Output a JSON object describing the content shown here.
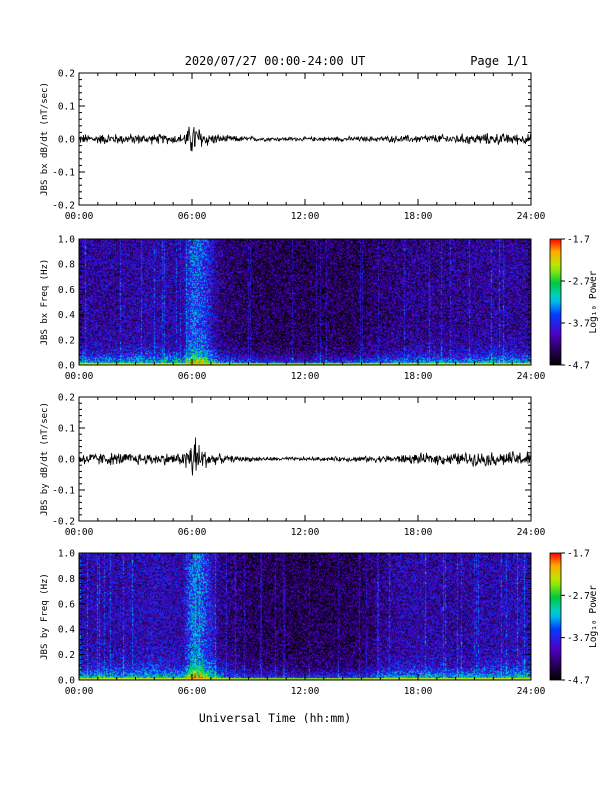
{
  "header": {
    "title": "2020/07/27  00:00-24:00 UT",
    "page": "Page 1/1"
  },
  "xlabel": "Universal Time (hh:mm)",
  "colors": {
    "line": "#000000",
    "background": "#ffffff"
  },
  "colorbar": {
    "label": "Log₁₀ Power",
    "ticks": [
      "-1.7",
      "-2.7",
      "-3.7",
      "-4.7"
    ],
    "range": [
      -4.7,
      -1.7
    ]
  },
  "chart_data": [
    {
      "type": "line",
      "ylabel": "JBS bx dB/dt (nT/sec)",
      "xlim": [
        0,
        24
      ],
      "ylim": [
        -0.2,
        0.2
      ],
      "xticks": [
        "00:00",
        "06:00",
        "12:00",
        "18:00",
        "24:00"
      ],
      "yticks": [
        "0.2",
        "0.1",
        "0.0",
        "-0.1",
        "-0.2"
      ],
      "x": [
        0,
        2,
        4,
        5.5,
        6.1,
        6.4,
        7,
        8,
        10,
        12,
        14,
        16,
        18,
        20,
        22,
        24
      ],
      "amplitude": [
        0.012,
        0.013,
        0.012,
        0.012,
        0.045,
        0.03,
        0.014,
        0.008,
        0.005,
        0.005,
        0.006,
        0.007,
        0.01,
        0.012,
        0.014,
        0.012
      ]
    },
    {
      "type": "heatmap",
      "ylabel": "JBS bx Freq (Hz)",
      "xlim": [
        0,
        24
      ],
      "ylim": [
        0,
        1
      ],
      "xticks": [
        "00:00",
        "06:00",
        "12:00",
        "18:00",
        "24:00"
      ],
      "yticks": [
        "1.0",
        "0.8",
        "0.6",
        "0.4",
        "0.2",
        "0.0"
      ],
      "color_scale": "rainbow",
      "zlim": [
        -4.7,
        -1.7
      ],
      "activity_hours": [
        0,
        2,
        4,
        5.5,
        6.0,
        6.5,
        7.5,
        9,
        12,
        15,
        16.5,
        18,
        20,
        22,
        24
      ],
      "activity_level": [
        0.35,
        0.35,
        0.4,
        0.35,
        0.8,
        0.75,
        0.25,
        0.15,
        0.12,
        0.15,
        0.25,
        0.3,
        0.3,
        0.35,
        0.35
      ]
    },
    {
      "type": "line",
      "ylabel": "JBS by dB/dt (nT/sec)",
      "xlim": [
        0,
        24
      ],
      "ylim": [
        -0.2,
        0.2
      ],
      "xticks": [
        "00:00",
        "06:00",
        "12:00",
        "18:00",
        "24:00"
      ],
      "yticks": [
        "0.2",
        "0.1",
        "0.0",
        "-0.1",
        "-0.2"
      ],
      "x": [
        0,
        2,
        4,
        5.5,
        6.1,
        6.4,
        7,
        8,
        10,
        12,
        14,
        16,
        18,
        20,
        22,
        24
      ],
      "amplitude": [
        0.016,
        0.016,
        0.015,
        0.015,
        0.07,
        0.04,
        0.016,
        0.008,
        0.005,
        0.005,
        0.006,
        0.009,
        0.013,
        0.016,
        0.018,
        0.02
      ]
    },
    {
      "type": "heatmap",
      "ylabel": "JBS by Freq (Hz)",
      "xlim": [
        0,
        24
      ],
      "ylim": [
        0,
        1
      ],
      "xticks": [
        "00:00",
        "06:00",
        "12:00",
        "18:00",
        "24:00"
      ],
      "yticks": [
        "1.0",
        "0.8",
        "0.6",
        "0.4",
        "0.2",
        "0.0"
      ],
      "color_scale": "rainbow",
      "zlim": [
        -4.7,
        -1.7
      ],
      "activity_hours": [
        0,
        2,
        4,
        5.5,
        6.0,
        6.5,
        7.5,
        9,
        12,
        15,
        16.5,
        18,
        20,
        22,
        24
      ],
      "activity_level": [
        0.4,
        0.4,
        0.45,
        0.4,
        0.85,
        0.8,
        0.3,
        0.15,
        0.12,
        0.15,
        0.35,
        0.4,
        0.35,
        0.4,
        0.45
      ]
    }
  ]
}
